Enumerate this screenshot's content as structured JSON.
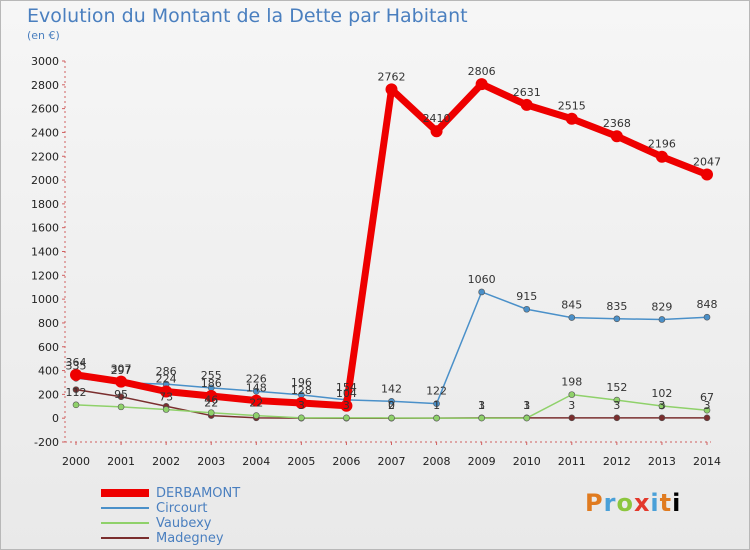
{
  "chart_data": {
    "type": "line",
    "title": "Evolution du Montant de la Dette par Habitant",
    "subtitle": "(en €)",
    "x": [
      "2000",
      "2001",
      "2002",
      "2003",
      "2004",
      "2005",
      "2006",
      "2007",
      "2008",
      "2009",
      "2010",
      "2011",
      "2012",
      "2013",
      "2014"
    ],
    "yticks": [
      -200,
      0,
      200,
      400,
      600,
      800,
      1000,
      1200,
      1400,
      1600,
      1800,
      2000,
      2200,
      2400,
      2600,
      2800,
      3000
    ],
    "ylim": [
      -200,
      3000
    ],
    "grid": false,
    "legend_position": "bottom-left",
    "series": [
      {
        "name": "DERBAMONT",
        "color": "#ee0000",
        "values": [
          364,
          307,
          224,
          186,
          148,
          128,
          104,
          2762,
          2410,
          2806,
          2631,
          2515,
          2368,
          2196,
          2047
        ],
        "labels": [
          "364",
          "307",
          "224",
          "186",
          "148",
          "128",
          "104",
          "2762",
          "2410",
          "2806",
          "2631",
          "2515",
          "2368",
          "2196",
          "2047"
        ]
      },
      {
        "name": "Circourt",
        "color": "#4a90c9",
        "values": [
          335,
          297,
          286,
          255,
          226,
          196,
          154,
          142,
          122,
          1060,
          915,
          845,
          835,
          829,
          848
        ],
        "labels": [
          "335",
          "297",
          "286",
          "255",
          "226",
          "196",
          "154",
          "142",
          "122",
          "1060",
          "915",
          "845",
          "835",
          "829",
          "848"
        ]
      },
      {
        "name": "Vaubexy",
        "color": "#8fd16a",
        "values": [
          112,
          95,
          73,
          46,
          22,
          3,
          3,
          2,
          1,
          1,
          1,
          198,
          152,
          102,
          67
        ],
        "labels": [
          "112",
          "95",
          "73",
          "46",
          "22",
          "3",
          "3",
          "2",
          "1",
          "1",
          "1",
          "198",
          "152",
          "102",
          "67"
        ]
      },
      {
        "name": "Madegney",
        "color": "#7a2e2e",
        "values": [
          240,
          180,
          100,
          22,
          3,
          0,
          0,
          0,
          1,
          3,
          3,
          3,
          3,
          3,
          3
        ],
        "labels": [
          "",
          "",
          "",
          "22",
          "",
          "",
          "",
          "0",
          "",
          "3",
          "3",
          "3",
          "3",
          "3",
          "3"
        ]
      }
    ]
  },
  "brand": {
    "letters": [
      "P",
      "r",
      "o",
      "x",
      "i",
      "t",
      "i"
    ]
  }
}
